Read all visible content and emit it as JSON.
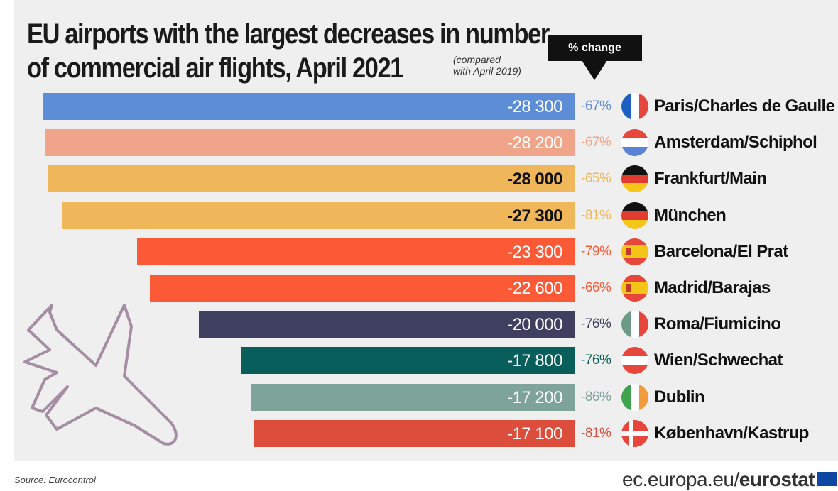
{
  "title_line1": "EU airports with the largest decreases in number",
  "title_line2": "of commercial air flights, April 2021",
  "subnote_line1": "(compared",
  "subnote_line2": "with April 2019)",
  "pct_header": "% change",
  "source": "Source: Eurocontrol",
  "logo_text": "ec.europa.eu/",
  "logo_bold": "eurostat",
  "colors": {
    "background": "#efefef",
    "france": "#5c8dd6",
    "netherlands": "#f0a58a",
    "germany": "#f0b75a",
    "spain": "#fc5a37",
    "italy": "#3f4060",
    "austria": "#075e5a",
    "ireland": "#7da39a",
    "denmark": "#dc4d3b"
  },
  "chart_data": {
    "type": "bar",
    "orientation": "horizontal",
    "title": "EU airports with the largest decreases in number of commercial air flights, April 2021",
    "categories": [
      "Paris/Charles de Gaulle",
      "Amsterdam/Schiphol",
      "Frankfurt/Main",
      "München",
      "Barcelona/El Prat",
      "Madrid/Barajas",
      "Roma/Fiumicino",
      "Wien/Schwechat",
      "Dublin",
      "København/Kastrup"
    ],
    "values": [
      -28300,
      -28200,
      -28000,
      -27300,
      -23300,
      -22600,
      -20000,
      -17800,
      -17200,
      -17100
    ],
    "value_labels": [
      "-28 300",
      "-28 200",
      "-28 000",
      "-27 300",
      "-23 300",
      "-22 600",
      "-20 000",
      "-17 800",
      "-17 200",
      "-17 100"
    ],
    "pct_change": [
      "-67%",
      "-67%",
      "-65%",
      "-81%",
      "-79%",
      "-66%",
      "-76%",
      "-76%",
      "-86%",
      "-81%"
    ],
    "countries": [
      "france",
      "netherlands",
      "germany",
      "germany",
      "spain",
      "spain",
      "italy",
      "austria",
      "ireland",
      "denmark"
    ],
    "bar_colors": [
      "#5c8dd6",
      "#f0a58a",
      "#f0b75a",
      "#f0b75a",
      "#fc5a37",
      "#fc5a37",
      "#3f4060",
      "#075e5a",
      "#7da39a",
      "#dc4d3b"
    ],
    "label_colors": [
      "#ffffff",
      "#ffffff",
      "#111111",
      "#111111",
      "#ffffff",
      "#ffffff",
      "#ffffff",
      "#ffffff",
      "#ffffff",
      "#ffffff"
    ],
    "pct_colors": [
      "#5c8dd6",
      "#f0a58a",
      "#f0b75a",
      "#f0b75a",
      "#fc5a37",
      "#fc5a37",
      "#3f4060",
      "#075e5a",
      "#7da39a",
      "#dc4d3b"
    ],
    "xlim": [
      -29000,
      0
    ],
    "grid": false,
    "legend": "none"
  }
}
